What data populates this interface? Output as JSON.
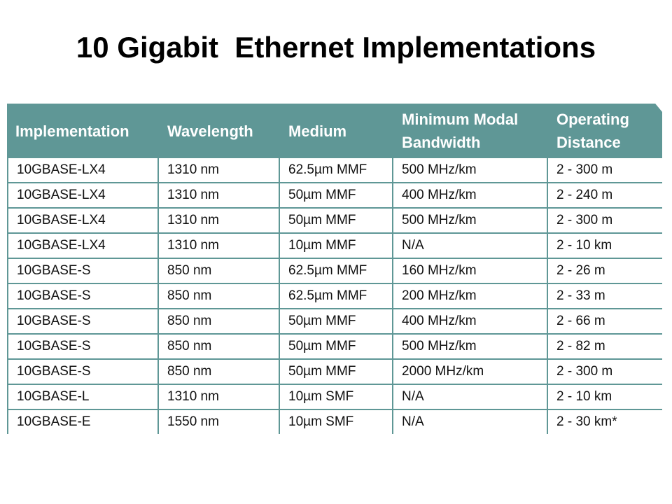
{
  "title": "10 Gigabit  Ethernet Implementations",
  "colors": {
    "header_bg": "#5f9796",
    "header_text": "#ffffff",
    "cell_bg": "#ffffff",
    "cell_text": "#111111"
  },
  "table": {
    "headers": [
      "Implementation",
      "Wavelength",
      "Medium",
      "Minimum Modal\nBandwidth",
      "Operating\nDistance"
    ],
    "rows": [
      [
        "10GBASE-LX4",
        "1310 nm",
        "62.5µm MMF",
        "500 MHz/km",
        "2 - 300 m"
      ],
      [
        "10GBASE-LX4",
        "1310 nm",
        "50µm MMF",
        "400 MHz/km",
        "2 - 240 m"
      ],
      [
        "10GBASE-LX4",
        "1310 nm",
        "50µm MMF",
        "500 MHz/km",
        "2 - 300 m"
      ],
      [
        "10GBASE-LX4",
        "1310 nm",
        "10µm MMF",
        "N/A",
        "2 - 10 km"
      ],
      [
        "10GBASE-S",
        "850 nm",
        "62.5µm MMF",
        "160 MHz/km",
        "2 - 26 m"
      ],
      [
        "10GBASE-S",
        "850 nm",
        "62.5µm MMF",
        "200 MHz/km",
        "2 - 33 m"
      ],
      [
        "10GBASE-S",
        "850 nm",
        "50µm MMF",
        "400 MHz/km",
        "2 - 66 m"
      ],
      [
        "10GBASE-S",
        "850 nm",
        "50µm MMF",
        "500 MHz/km",
        "2 - 82 m"
      ],
      [
        "10GBASE-S",
        "850 nm",
        "50µm MMF",
        "2000 MHz/km",
        "2 - 300 m"
      ],
      [
        "10GBASE-L",
        "1310 nm",
        "10µm SMF",
        "N/A",
        "2 - 10 km"
      ],
      [
        "10GBASE-E",
        "1550 nm",
        "10µm SMF",
        "N/A",
        "2 - 30 km*"
      ]
    ]
  }
}
